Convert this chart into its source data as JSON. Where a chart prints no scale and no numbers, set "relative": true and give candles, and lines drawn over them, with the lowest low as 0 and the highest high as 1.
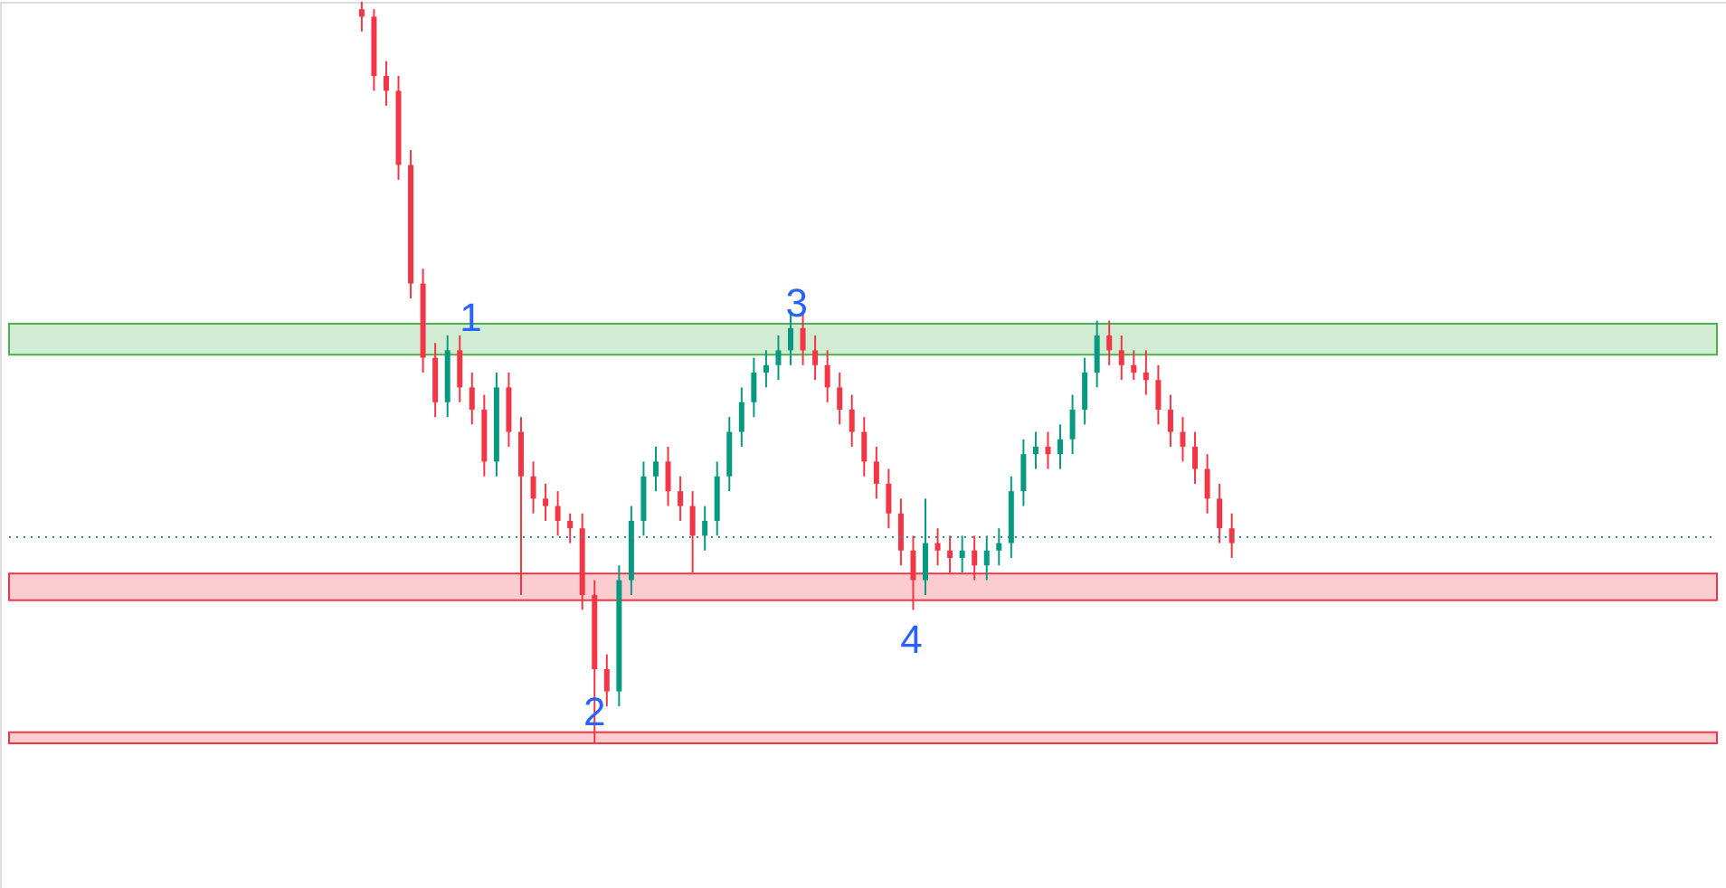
{
  "chart_data": {
    "type": "candlestick",
    "relative": true,
    "categories": [
      null,
      null,
      null,
      null,
      null,
      null,
      null,
      null,
      null,
      null,
      null,
      null,
      null,
      null,
      null,
      null,
      null,
      null,
      null,
      null,
      null,
      null,
      null,
      null,
      null,
      null,
      null,
      null,
      null,
      null,
      null,
      null,
      null,
      null,
      null,
      null,
      null,
      null,
      null,
      null,
      null,
      null,
      null,
      null,
      null,
      null,
      null,
      null,
      null,
      null,
      null,
      null,
      null,
      null,
      null,
      null,
      null,
      null,
      null,
      null,
      null,
      null,
      null,
      null,
      null,
      null,
      null,
      null,
      null,
      null,
      null,
      null
    ],
    "colors": [
      "#f23645",
      "#f23645",
      "#f23645",
      "#f23645",
      "#f23645",
      "#f23645",
      "#f23645",
      "#089981",
      "#f23645",
      "#f23645",
      "#f23645",
      "#089981",
      "#f23645",
      "#f23645",
      "#f23645",
      "#f23645",
      "#f23645",
      "#f23645",
      "#f23645",
      "#f23645",
      "#f23645",
      "#089981",
      "#089981",
      "#089981",
      "#089981",
      "#f23645",
      "#f23645",
      "#f23645",
      "#089981",
      "#089981",
      "#089981",
      "#089981",
      "#089981",
      "#089981",
      "#089981",
      "#089981",
      "#f23645",
      "#f23645",
      "#f23645",
      "#f23645",
      "#f23645",
      "#f23645",
      "#f23645",
      "#f23645",
      "#f23645",
      "#f23645",
      "#089981",
      "#f23645",
      "#f23645",
      "#089981",
      "#f23645",
      "#089981",
      "#089981",
      "#089981",
      "#089981",
      "#089981",
      "#f23645",
      "#089981",
      "#089981",
      "#089981",
      "#089981",
      "#f23645",
      "#f23645",
      "#f23645",
      "#f23645",
      "#f23645",
      "#f23645",
      "#f23645",
      "#f23645",
      "#f23645",
      "#f23645",
      "#f23645"
    ],
    "ohlc": [
      [
        0.99,
        1.0,
        0.96,
        0.98
      ],
      [
        0.98,
        0.99,
        0.88,
        0.9
      ],
      [
        0.9,
        0.92,
        0.86,
        0.88
      ],
      [
        0.88,
        0.9,
        0.76,
        0.78
      ],
      [
        0.78,
        0.8,
        0.6,
        0.62
      ],
      [
        0.62,
        0.64,
        0.5,
        0.52
      ],
      [
        0.52,
        0.54,
        0.44,
        0.46
      ],
      [
        0.46,
        0.55,
        0.44,
        0.53
      ],
      [
        0.53,
        0.55,
        0.46,
        0.48
      ],
      [
        0.48,
        0.5,
        0.43,
        0.45
      ],
      [
        0.45,
        0.47,
        0.36,
        0.38
      ],
      [
        0.38,
        0.5,
        0.36,
        0.48
      ],
      [
        0.48,
        0.5,
        0.4,
        0.42
      ],
      [
        0.42,
        0.44,
        0.2,
        0.36
      ],
      [
        0.36,
        0.38,
        0.31,
        0.33
      ],
      [
        0.33,
        0.35,
        0.3,
        0.32
      ],
      [
        0.32,
        0.34,
        0.28,
        0.3
      ],
      [
        0.3,
        0.31,
        0.27,
        0.29
      ],
      [
        0.29,
        0.31,
        0.18,
        0.2
      ],
      [
        0.2,
        0.22,
        0.0,
        0.1
      ],
      [
        0.1,
        0.12,
        0.05,
        0.07
      ],
      [
        0.07,
        0.24,
        0.05,
        0.22
      ],
      [
        0.22,
        0.32,
        0.2,
        0.3
      ],
      [
        0.3,
        0.38,
        0.28,
        0.36
      ],
      [
        0.36,
        0.4,
        0.34,
        0.38
      ],
      [
        0.38,
        0.4,
        0.32,
        0.34
      ],
      [
        0.34,
        0.36,
        0.3,
        0.32
      ],
      [
        0.32,
        0.34,
        0.23,
        0.28
      ],
      [
        0.28,
        0.32,
        0.26,
        0.3
      ],
      [
        0.3,
        0.38,
        0.28,
        0.36
      ],
      [
        0.36,
        0.44,
        0.34,
        0.42
      ],
      [
        0.42,
        0.48,
        0.4,
        0.46
      ],
      [
        0.46,
        0.52,
        0.44,
        0.5
      ],
      [
        0.5,
        0.53,
        0.48,
        0.51
      ],
      [
        0.51,
        0.55,
        0.49,
        0.53
      ],
      [
        0.53,
        0.58,
        0.51,
        0.56
      ],
      [
        0.56,
        0.58,
        0.51,
        0.53
      ],
      [
        0.53,
        0.55,
        0.49,
        0.51
      ],
      [
        0.51,
        0.53,
        0.46,
        0.48
      ],
      [
        0.48,
        0.5,
        0.43,
        0.45
      ],
      [
        0.45,
        0.47,
        0.4,
        0.42
      ],
      [
        0.42,
        0.44,
        0.36,
        0.38
      ],
      [
        0.38,
        0.4,
        0.33,
        0.35
      ],
      [
        0.35,
        0.37,
        0.29,
        0.31
      ],
      [
        0.31,
        0.33,
        0.24,
        0.26
      ],
      [
        0.26,
        0.28,
        0.18,
        0.22
      ],
      [
        0.22,
        0.33,
        0.2,
        0.27
      ],
      [
        0.27,
        0.29,
        0.24,
        0.26
      ],
      [
        0.26,
        0.28,
        0.23,
        0.25
      ],
      [
        0.25,
        0.28,
        0.23,
        0.26
      ],
      [
        0.26,
        0.28,
        0.22,
        0.24
      ],
      [
        0.24,
        0.28,
        0.22,
        0.26
      ],
      [
        0.26,
        0.29,
        0.24,
        0.27
      ],
      [
        0.27,
        0.36,
        0.25,
        0.34
      ],
      [
        0.34,
        0.41,
        0.32,
        0.39
      ],
      [
        0.39,
        0.42,
        0.37,
        0.4
      ],
      [
        0.4,
        0.42,
        0.37,
        0.39
      ],
      [
        0.39,
        0.43,
        0.37,
        0.41
      ],
      [
        0.41,
        0.47,
        0.39,
        0.45
      ],
      [
        0.45,
        0.52,
        0.43,
        0.5
      ],
      [
        0.5,
        0.57,
        0.48,
        0.55
      ],
      [
        0.55,
        0.57,
        0.51,
        0.53
      ],
      [
        0.53,
        0.55,
        0.49,
        0.51
      ],
      [
        0.51,
        0.53,
        0.49,
        0.5
      ],
      [
        0.5,
        0.53,
        0.47,
        0.49
      ],
      [
        0.49,
        0.51,
        0.43,
        0.45
      ],
      [
        0.45,
        0.47,
        0.4,
        0.42
      ],
      [
        0.42,
        0.44,
        0.38,
        0.4
      ],
      [
        0.4,
        0.42,
        0.35,
        0.37
      ],
      [
        0.37,
        0.39,
        0.31,
        0.33
      ],
      [
        0.33,
        0.35,
        0.27,
        0.29
      ],
      [
        0.29,
        0.31,
        0.25,
        0.27
      ]
    ],
    "bands": [
      {
        "axis": "y",
        "from": 0.524,
        "to": 0.566,
        "color": "#4caf50"
      },
      {
        "axis": "y",
        "from": 0.193,
        "to": 0.229,
        "color": "#f23645"
      },
      {
        "axis": "y",
        "from": 0.0,
        "to": 0.015,
        "color": "#f23645"
      }
    ],
    "ref_lines": [
      {
        "axis": "y",
        "value": 0.278,
        "color": "#3f8f85",
        "line_style": "dotted"
      }
    ],
    "annotations": [
      "1",
      "2",
      "3",
      "4"
    ]
  }
}
